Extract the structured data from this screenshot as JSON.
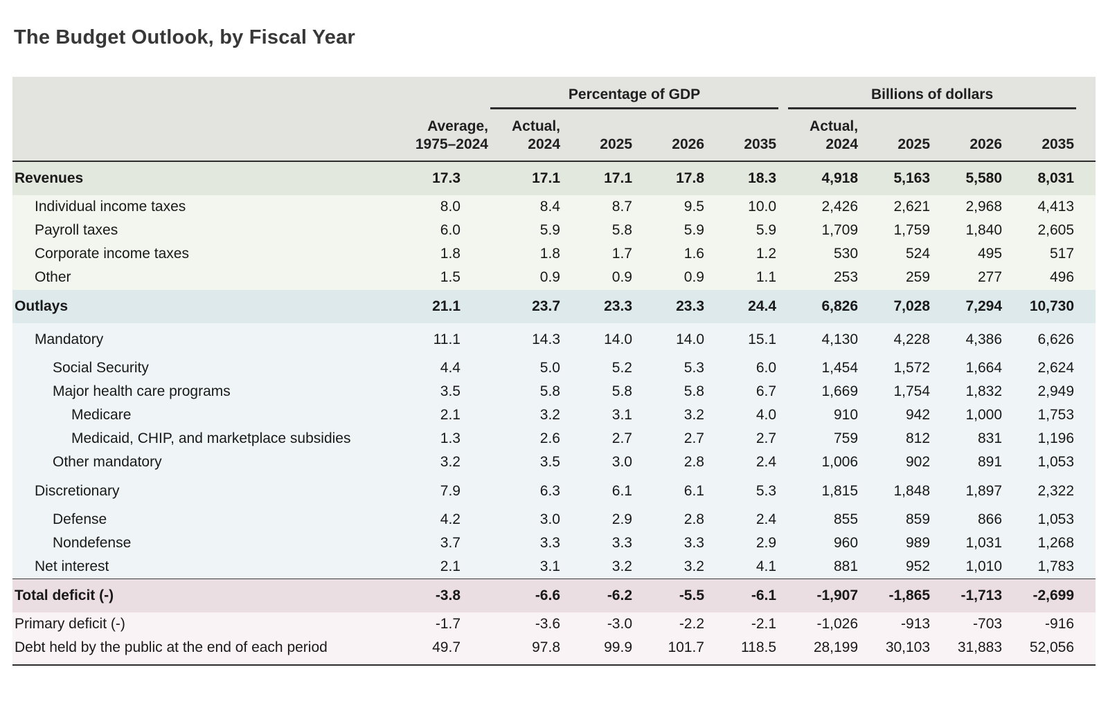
{
  "title": "The Budget Outlook, by Fiscal Year",
  "colors": {
    "header_bg": "#e3e3df",
    "revenues_section_bg": "#e2e8dd",
    "revenues_row_bg": "#f3f6ef",
    "outlays_section_bg": "#dee9ec",
    "outlays_row_bg": "#eff4f6",
    "deficit_section_bg": "#ebdee3",
    "deficit_row_bg": "#f9f3f5",
    "rule": "#2d2d2d"
  },
  "chart_data": {
    "type": "table",
    "title": "The Budget Outlook, by Fiscal Year",
    "group_headers": [
      "Percentage of GDP",
      "Billions of dollars"
    ],
    "column_headers": [
      "Average,\n1975–2024",
      "Actual,\n2024",
      "2025",
      "2026",
      "2035",
      "Actual,\n2024",
      "2025",
      "2026",
      "2035"
    ],
    "rows": [
      {
        "label": "Revenues",
        "indent": 0,
        "style": "section-green",
        "values": [
          "17.3",
          "17.1",
          "17.1",
          "17.8",
          "18.3",
          "4,918",
          "5,163",
          "5,580",
          "8,031"
        ]
      },
      {
        "label": "Individual income taxes",
        "indent": 1,
        "style": "light-green",
        "values": [
          "8.0",
          "8.4",
          "8.7",
          "9.5",
          "10.0",
          "2,426",
          "2,621",
          "2,968",
          "4,413"
        ]
      },
      {
        "label": "Payroll taxes",
        "indent": 1,
        "style": "light-green",
        "values": [
          "6.0",
          "5.9",
          "5.8",
          "5.9",
          "5.9",
          "1,709",
          "1,759",
          "1,840",
          "2,605"
        ]
      },
      {
        "label": "Corporate income taxes",
        "indent": 1,
        "style": "light-green",
        "values": [
          "1.8",
          "1.8",
          "1.7",
          "1.6",
          "1.2",
          "530",
          "524",
          "495",
          "517"
        ]
      },
      {
        "label": "Other",
        "indent": 1,
        "style": "light-green",
        "values": [
          "1.5",
          "0.9",
          "0.9",
          "0.9",
          "1.1",
          "253",
          "259",
          "277",
          "496"
        ]
      },
      {
        "label": "Outlays",
        "indent": 0,
        "style": "section-blue",
        "values": [
          "21.1",
          "23.7",
          "23.3",
          "23.3",
          "24.4",
          "6,826",
          "7,028",
          "7,294",
          "10,730"
        ]
      },
      {
        "label": "Mandatory",
        "indent": 1,
        "style": "light-blue",
        "gap_before": true,
        "values": [
          "11.1",
          "14.3",
          "14.0",
          "14.0",
          "15.1",
          "4,130",
          "4,228",
          "4,386",
          "6,626"
        ]
      },
      {
        "label": "Social Security",
        "indent": 2,
        "style": "light-blue",
        "gap_before": true,
        "values": [
          "4.4",
          "5.0",
          "5.2",
          "5.3",
          "6.0",
          "1,454",
          "1,572",
          "1,664",
          "2,624"
        ]
      },
      {
        "label": "Major health care programs",
        "indent": 2,
        "style": "light-blue",
        "values": [
          "3.5",
          "5.8",
          "5.8",
          "5.8",
          "6.7",
          "1,669",
          "1,754",
          "1,832",
          "2,949"
        ]
      },
      {
        "label": "Medicare",
        "indent": 3,
        "style": "light-blue",
        "values": [
          "2.1",
          "3.2",
          "3.1",
          "3.2",
          "4.0",
          "910",
          "942",
          "1,000",
          "1,753"
        ]
      },
      {
        "label": "Medicaid, CHIP, and marketplace subsidies",
        "indent": 3,
        "style": "light-blue",
        "values": [
          "1.3",
          "2.6",
          "2.7",
          "2.7",
          "2.7",
          "759",
          "812",
          "831",
          "1,196"
        ]
      },
      {
        "label": "Other mandatory",
        "indent": 2,
        "style": "light-blue",
        "values": [
          "3.2",
          "3.5",
          "3.0",
          "2.8",
          "2.4",
          "1,006",
          "902",
          "891",
          "1,053"
        ]
      },
      {
        "label": "Discretionary",
        "indent": 1,
        "style": "light-blue",
        "gap_before": true,
        "values": [
          "7.9",
          "6.3",
          "6.1",
          "6.1",
          "5.3",
          "1,815",
          "1,848",
          "1,897",
          "2,322"
        ]
      },
      {
        "label": "Defense",
        "indent": 2,
        "style": "light-blue",
        "gap_before": true,
        "values": [
          "4.2",
          "3.0",
          "2.9",
          "2.8",
          "2.4",
          "855",
          "859",
          "866",
          "1,053"
        ]
      },
      {
        "label": "Nondefense",
        "indent": 2,
        "style": "light-blue",
        "values": [
          "3.7",
          "3.3",
          "3.3",
          "3.3",
          "2.9",
          "960",
          "989",
          "1,031",
          "1,268"
        ]
      },
      {
        "label": "Net interest",
        "indent": 1,
        "style": "light-blue",
        "values": [
          "2.1",
          "3.1",
          "3.2",
          "3.2",
          "4.1",
          "881",
          "952",
          "1,010",
          "1,783"
        ]
      },
      {
        "label": "Total deficit (-)",
        "indent": 0,
        "style": "section-pink",
        "rule_above": true,
        "values": [
          "-3.8",
          "-6.6",
          "-6.2",
          "-5.5",
          "-6.1",
          "-1,907",
          "-1,865",
          "-1,713",
          "-2,699"
        ]
      },
      {
        "label": "Primary deficit (-)",
        "indent": 0,
        "style": "light-pink",
        "values": [
          "-1.7",
          "-3.6",
          "-3.0",
          "-2.2",
          "-2.1",
          "-1,026",
          "-913",
          "-703",
          "-916"
        ]
      },
      {
        "label": "Debt held by the public at the end of each period",
        "indent": 0,
        "style": "light-pink",
        "values": [
          "49.7",
          "97.8",
          "99.9",
          "101.7",
          "118.5",
          "28,199",
          "30,103",
          "31,883",
          "52,056"
        ]
      }
    ]
  }
}
